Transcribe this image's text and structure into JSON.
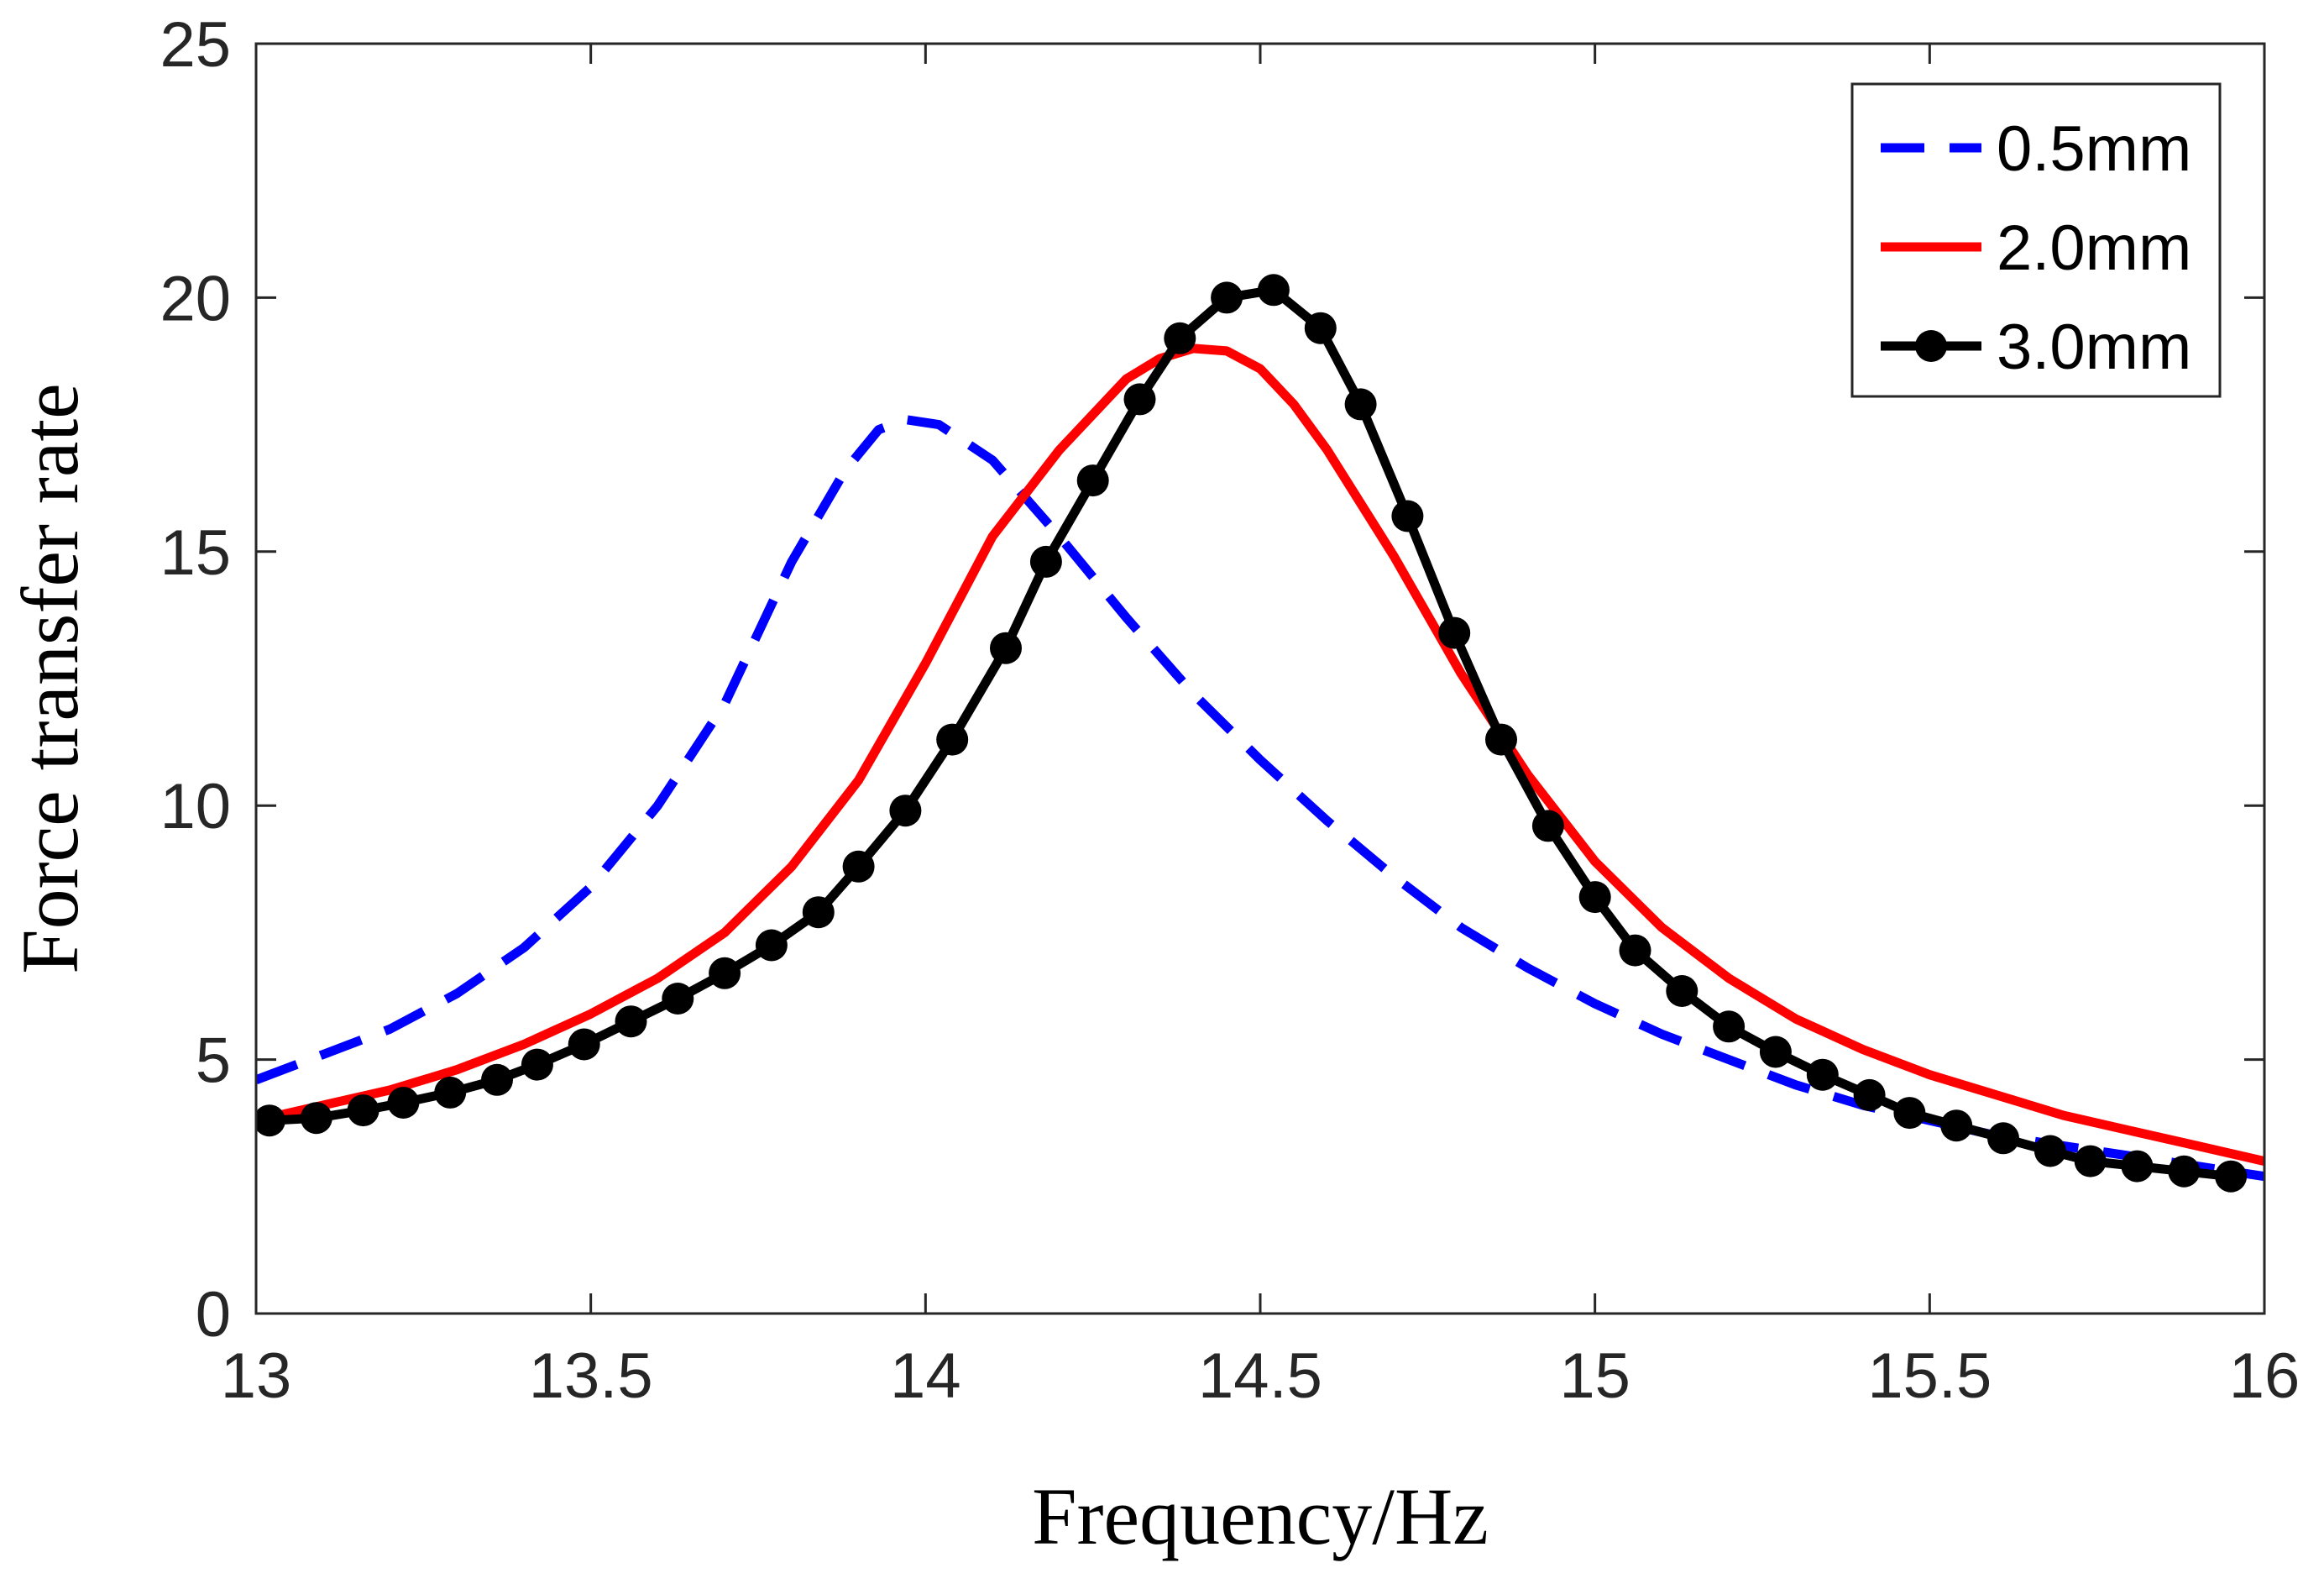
{
  "chart_data": {
    "type": "line",
    "title": "",
    "xlabel": "Frequency/Hz",
    "ylabel": "Force transfer rate",
    "xlim": [
      13,
      16
    ],
    "ylim": [
      0,
      25
    ],
    "xticks": [
      13,
      13.5,
      14,
      14.5,
      15,
      15.5,
      16
    ],
    "xtick_labels": [
      "13",
      "13.5",
      "14",
      "14.5",
      "15",
      "15.5",
      "16"
    ],
    "yticks": [
      0,
      5,
      10,
      15,
      20,
      25
    ],
    "ytick_labels": [
      "0",
      "5",
      "10",
      "15",
      "20",
      "25"
    ],
    "grid": false,
    "legend_position": "top-right",
    "series": [
      {
        "name": "0.5mm",
        "color": "#0000ff",
        "style": "dashed",
        "marker": "none",
        "x": [
          13.0,
          13.1,
          13.2,
          13.3,
          13.4,
          13.5,
          13.6,
          13.7,
          13.8,
          13.88,
          13.93,
          13.97,
          14.02,
          14.1,
          14.2,
          14.3,
          14.4,
          14.5,
          14.6,
          14.7,
          14.8,
          14.9,
          15.0,
          15.1,
          15.2,
          15.3,
          15.4,
          15.5,
          15.6,
          15.7,
          15.8,
          15.9,
          16.0
        ],
        "y": [
          4.6,
          5.1,
          5.6,
          6.3,
          7.2,
          8.4,
          10.0,
          12.0,
          14.8,
          16.6,
          17.4,
          17.6,
          17.5,
          16.8,
          15.3,
          13.7,
          12.2,
          10.9,
          9.7,
          8.6,
          7.6,
          6.8,
          6.1,
          5.5,
          5.0,
          4.5,
          4.1,
          3.8,
          3.5,
          3.3,
          3.1,
          2.9,
          2.7
        ]
      },
      {
        "name": "2.0mm",
        "color": "#ff0000",
        "style": "solid",
        "marker": "none",
        "x": [
          13.0,
          13.1,
          13.2,
          13.3,
          13.4,
          13.5,
          13.6,
          13.7,
          13.8,
          13.9,
          14.0,
          14.1,
          14.2,
          14.3,
          14.35,
          14.4,
          14.45,
          14.5,
          14.55,
          14.6,
          14.7,
          14.8,
          14.9,
          15.0,
          15.1,
          15.2,
          15.3,
          15.4,
          15.5,
          15.6,
          15.7,
          15.8,
          15.9,
          16.0
        ],
        "y": [
          3.8,
          4.1,
          4.4,
          4.8,
          5.3,
          5.9,
          6.6,
          7.5,
          8.8,
          10.5,
          12.8,
          15.3,
          17.0,
          18.4,
          18.8,
          19.0,
          18.95,
          18.6,
          17.9,
          17.0,
          14.9,
          12.6,
          10.6,
          8.9,
          7.6,
          6.6,
          5.8,
          5.2,
          4.7,
          4.3,
          3.9,
          3.6,
          3.3,
          3.0
        ]
      },
      {
        "name": "3.0mm",
        "color": "#000000",
        "style": "solid",
        "marker": "circle",
        "x": [
          13.02,
          13.09,
          13.16,
          13.22,
          13.29,
          13.36,
          13.42,
          13.49,
          13.56,
          13.63,
          13.7,
          13.77,
          13.84,
          13.9,
          13.97,
          14.04,
          14.12,
          14.18,
          14.25,
          14.32,
          14.38,
          14.45,
          14.52,
          14.59,
          14.65,
          14.72,
          14.79,
          14.86,
          14.93,
          15.0,
          15.06,
          15.13,
          15.2,
          15.27,
          15.34,
          15.41,
          15.47,
          15.54,
          15.61,
          15.68,
          15.74,
          15.81,
          15.88,
          15.95
        ],
        "y": [
          3.8,
          3.85,
          4.0,
          4.15,
          4.35,
          4.6,
          4.9,
          5.3,
          5.75,
          6.2,
          6.7,
          7.25,
          7.9,
          8.8,
          9.9,
          11.3,
          13.1,
          14.8,
          16.4,
          18.0,
          19.2,
          20.0,
          20.15,
          19.4,
          17.9,
          15.7,
          13.4,
          11.3,
          9.6,
          8.2,
          7.15,
          6.35,
          5.65,
          5.15,
          4.7,
          4.3,
          3.95,
          3.7,
          3.45,
          3.2,
          3.0,
          2.9,
          2.8,
          2.7
        ]
      }
    ]
  }
}
